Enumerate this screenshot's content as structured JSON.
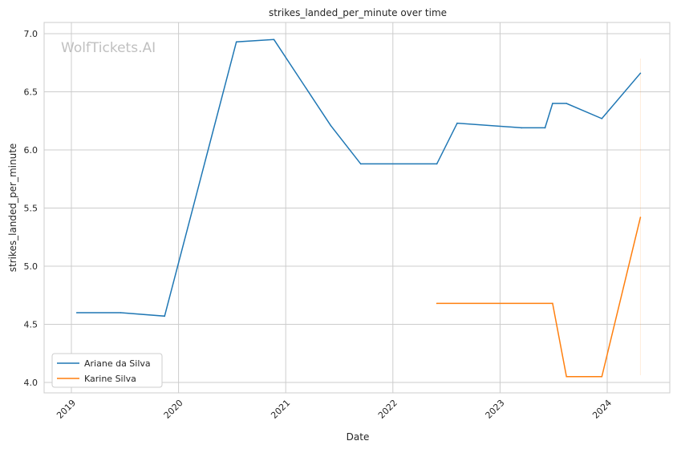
{
  "chart_data": {
    "type": "line",
    "title": "strikes_landed_per_minute over time",
    "xlabel": "Date",
    "ylabel": "strikes_landed_per_minute",
    "watermark": "WolfTickets.AI",
    "xlim": [
      2018.8,
      2024.58
    ],
    "ylim": [
      3.92,
      7.1
    ],
    "x_ticks": [
      2019,
      2020,
      2021,
      2022,
      2023,
      2024
    ],
    "x_tick_labels": [
      "2019",
      "2020",
      "2021",
      "2022",
      "2023",
      "2024"
    ],
    "y_ticks": [
      4.0,
      4.5,
      5.0,
      5.5,
      6.0,
      6.5,
      7.0
    ],
    "y_tick_labels": [
      "4.0",
      "4.5",
      "5.0",
      "5.5",
      "6.0",
      "6.5",
      "7.0"
    ],
    "grid": true,
    "legend_position": "bottom-left",
    "series": [
      {
        "name": "Ariane da Silva",
        "color": "#1f77b4",
        "x": [
          2019.05,
          2019.46,
          2019.87,
          2020.54,
          2020.89,
          2021.42,
          2021.7,
          2022.41,
          2022.6,
          2023.2,
          2023.42,
          2023.49,
          2023.62,
          2023.95,
          2024.31
        ],
        "y": [
          4.6,
          4.6,
          4.57,
          6.93,
          6.95,
          6.21,
          5.88,
          5.88,
          6.23,
          6.19,
          6.19,
          6.4,
          6.4,
          6.27,
          6.66
        ]
      },
      {
        "name": "Karine Silva",
        "color": "#ff7f0e",
        "x": [
          2022.41,
          2023.49,
          2023.62,
          2023.95,
          2024.31
        ],
        "y": [
          4.68,
          4.68,
          4.05,
          4.05,
          5.42
        ]
      }
    ]
  }
}
